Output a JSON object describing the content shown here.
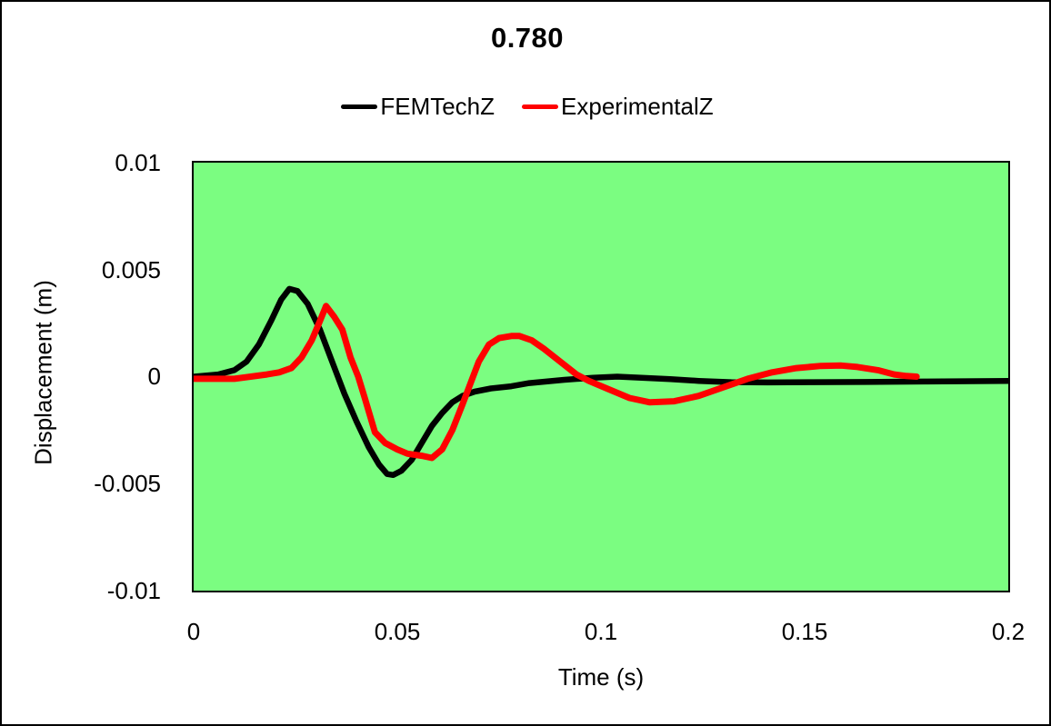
{
  "window": {
    "background": "#FFFFFF",
    "frame_color": "#000000"
  },
  "chart_data": {
    "type": "line",
    "title": "0.780",
    "xlabel": "Time (s)",
    "ylabel": "Displacement (m)",
    "xlim": [
      0,
      0.2
    ],
    "ylim": [
      -0.01,
      0.01
    ],
    "x_tick_labels": [
      "0",
      "0.05",
      "0.1",
      "0.15",
      "0.2"
    ],
    "y_tick_labels": [
      "0.01",
      "0.005",
      "0",
      "-0.005",
      "-0.01"
    ],
    "grid": false,
    "plot_background": "#7BFD81",
    "legend_position": "top-center",
    "series": [
      {
        "name": "FEMTechZ",
        "color": "#000000",
        "width": 6.5,
        "x": [
          0,
          0.006,
          0.01,
          0.013,
          0.016,
          0.019,
          0.0215,
          0.0235,
          0.0255,
          0.028,
          0.031,
          0.034,
          0.037,
          0.04,
          0.043,
          0.0455,
          0.0475,
          0.049,
          0.051,
          0.0535,
          0.056,
          0.0585,
          0.061,
          0.0635,
          0.066,
          0.069,
          0.073,
          0.078,
          0.0824,
          0.091,
          0.098,
          0.104,
          0.11,
          0.117,
          0.124,
          0.132,
          0.141,
          0.152,
          0.165,
          0.18,
          0.2
        ],
        "y": [
          0,
          0.0001,
          0.0003,
          0.0007,
          0.0015,
          0.0026,
          0.0036,
          0.0041,
          0.004,
          0.0034,
          0.0022,
          0.0007,
          -0.0008,
          -0.0021,
          -0.0033,
          -0.0041,
          -0.00455,
          -0.0046,
          -0.0044,
          -0.0039,
          -0.0031,
          -0.0023,
          -0.0017,
          -0.0012,
          -0.0009,
          -0.0007,
          -0.00055,
          -0.00045,
          -0.0003,
          -0.00015,
          -5e-05,
          0.0,
          -5e-05,
          -0.00012,
          -0.0002,
          -0.00026,
          -0.00027,
          -0.00026,
          -0.00025,
          -0.00023,
          -0.0002
        ]
      },
      {
        "name": "ExperimentalZ",
        "color": "#FF0000",
        "width": 7,
        "x": [
          0,
          0.01,
          0.014,
          0.018,
          0.021,
          0.024,
          0.0265,
          0.029,
          0.031,
          0.0325,
          0.0345,
          0.0365,
          0.0385,
          0.0404,
          0.042,
          0.0445,
          0.047,
          0.05,
          0.0525,
          0.056,
          0.0585,
          0.061,
          0.0635,
          0.066,
          0.068,
          0.07,
          0.0725,
          0.075,
          0.078,
          0.08,
          0.083,
          0.086,
          0.09,
          0.094,
          0.097,
          0.102,
          0.107,
          0.112,
          0.118,
          0.124,
          0.13,
          0.136,
          0.142,
          0.148,
          0.154,
          0.159,
          0.163,
          0.168,
          0.172,
          0.175,
          0.1775
        ],
        "y": [
          -0.0001,
          -0.0001,
          0.0,
          0.0001,
          0.0002,
          0.0004,
          0.0009,
          0.0017,
          0.0026,
          0.0033,
          0.0028,
          0.0022,
          0.0009,
          0.0,
          -0.001,
          -0.0026,
          -0.0031,
          -0.0034,
          -0.0036,
          -0.0037,
          -0.0038,
          -0.0034,
          -0.0025,
          -0.0013,
          -0.0003,
          0.0007,
          0.0015,
          0.0018,
          0.0019,
          0.0019,
          0.0017,
          0.0013,
          0.0007,
          0.0001,
          -0.0002,
          -0.0006,
          -0.001,
          -0.0012,
          -0.00115,
          -0.0009,
          -0.0005,
          -0.0001,
          0.0002,
          0.0004,
          0.0005,
          0.00052,
          0.00045,
          0.0003,
          0.0001,
          3e-05,
          0.0
        ]
      }
    ]
  }
}
